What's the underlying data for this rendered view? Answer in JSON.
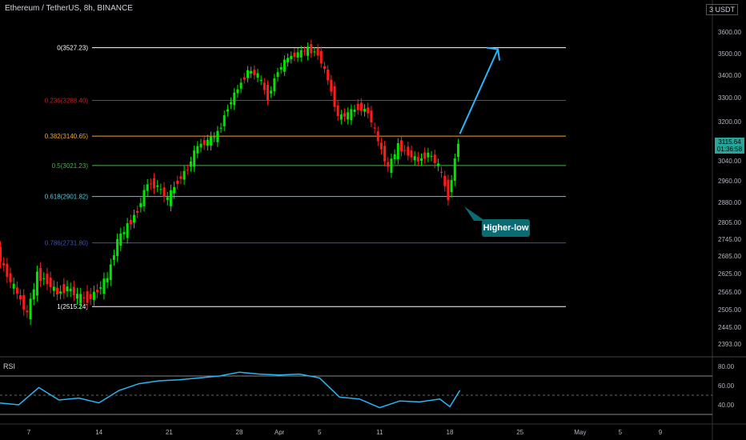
{
  "header": {
    "title": "Ethereum / TetherUS, 8h, BINANCE",
    "currency": "USDT",
    "currency_index": "3"
  },
  "price_badge": {
    "price": "3115.64",
    "countdown": "01:36:58"
  },
  "annotation": {
    "label": "Higher-low"
  },
  "rsi": {
    "label": "RSI",
    "ticks": [
      "80.00",
      "60.00",
      "40.00"
    ]
  },
  "colors": {
    "up": "#00e600",
    "down": "#ff1a1a",
    "fib0": "#ffffff",
    "fib236": "#cc1f1f",
    "fib382": "#f5a623",
    "fib5": "#4caf50",
    "fib618": "#4dd0e1",
    "fib786": "#3f51b5",
    "fib1": "#ffffff",
    "rsi": "#29b6f6",
    "arrow": "#29b6f6",
    "badge": "#26a69a"
  },
  "chart_data": {
    "type": "candlestick",
    "title": "Ethereum / TetherUS, 8h, BINANCE",
    "y_ticks": [
      "3600.00",
      "3500.00",
      "3400.00",
      "3300.00",
      "3200.00",
      "3040.00",
      "2960.00",
      "2880.00",
      "2805.00",
      "2745.00",
      "2685.00",
      "2625.00",
      "2565.00",
      "2505.00",
      "2445.00",
      "2393.00"
    ],
    "x_ticks": [
      "7",
      "14",
      "21",
      "28",
      "Apr",
      "5",
      "11",
      "18",
      "25",
      "May",
      "5",
      "9"
    ],
    "fib_levels": [
      {
        "label": "0(3527.23)",
        "value": 3527.23,
        "color_key": "fib0"
      },
      {
        "label": "0.236(3288.40)",
        "value": 3288.4,
        "color_key": "fib236"
      },
      {
        "label": "0.382(3140.65)",
        "value": 3140.65,
        "color_key": "fib382"
      },
      {
        "label": "0.5(3021.23)",
        "value": 3021.23,
        "color_key": "fib5"
      },
      {
        "label": "0.618(2901.82)",
        "value": 2901.82,
        "color_key": "fib618"
      },
      {
        "label": "0.786(2731.80)",
        "value": 2731.8,
        "color_key": "fib786"
      },
      {
        "label": "1(2515.24)",
        "value": 2515.24,
        "color_key": "fib1"
      }
    ],
    "close_path": [
      [
        "Mar 4",
        2700
      ],
      [
        "Mar 5",
        2620
      ],
      [
        "Mar 6",
        2560
      ],
      [
        "Mar 7",
        2490
      ],
      [
        "Mar 8",
        2620
      ],
      [
        "Mar 9",
        2600
      ],
      [
        "Mar 10",
        2560
      ],
      [
        "Mar 11",
        2580
      ],
      [
        "Mar 12",
        2550
      ],
      [
        "Mar 13",
        2540
      ],
      [
        "Mar 14",
        2570
      ],
      [
        "Mar 15",
        2610
      ],
      [
        "Mar 16",
        2740
      ],
      [
        "Mar 17",
        2790
      ],
      [
        "Mar 18",
        2850
      ],
      [
        "Mar 19",
        2950
      ],
      [
        "Mar 20",
        2940
      ],
      [
        "Mar 21",
        2890
      ],
      [
        "Mar 22",
        2960
      ],
      [
        "Mar 23",
        3010
      ],
      [
        "Mar 24",
        3100
      ],
      [
        "Mar 25",
        3120
      ],
      [
        "Mar 26",
        3150
      ],
      [
        "Mar 27",
        3260
      ],
      [
        "Mar 28",
        3340
      ],
      [
        "Mar 29",
        3420
      ],
      [
        "Mar 30",
        3400
      ],
      [
        "Mar 31",
        3300
      ],
      [
        "Apr 1",
        3420
      ],
      [
        "Apr 2",
        3480
      ],
      [
        "Apr 3",
        3500
      ],
      [
        "Apr 4",
        3520
      ],
      [
        "Apr 5",
        3500
      ],
      [
        "Apr 6",
        3380
      ],
      [
        "Apr 7",
        3220
      ],
      [
        "Apr 8",
        3230
      ],
      [
        "Apr 9",
        3260
      ],
      [
        "Apr 10",
        3240
      ],
      [
        "Apr 11",
        3120
      ],
      [
        "Apr 12",
        3010
      ],
      [
        "Apr 13",
        3100
      ],
      [
        "Apr 14",
        3070
      ],
      [
        "Apr 15",
        3040
      ],
      [
        "Apr 16",
        3070
      ],
      [
        "Apr 17",
        3020
      ],
      [
        "Apr 18",
        2900
      ],
      [
        "Apr 19",
        3115.64
      ]
    ],
    "rsi_path": [
      [
        "Mar 4",
        42
      ],
      [
        "Mar 6",
        40
      ],
      [
        "Mar 8",
        58
      ],
      [
        "Mar 10",
        45
      ],
      [
        "Mar 12",
        47
      ],
      [
        "Mar 14",
        42
      ],
      [
        "Mar 16",
        55
      ],
      [
        "Mar 18",
        62
      ],
      [
        "Mar 20",
        65
      ],
      [
        "Mar 22",
        66
      ],
      [
        "Mar 24",
        68
      ],
      [
        "Mar 26",
        70
      ],
      [
        "Mar 28",
        74
      ],
      [
        "Mar 30",
        72
      ],
      [
        "Apr 1",
        71
      ],
      [
        "Apr 3",
        72
      ],
      [
        "Apr 5",
        68
      ],
      [
        "Apr 7",
        48
      ],
      [
        "Apr 9",
        46
      ],
      [
        "Apr 11",
        37
      ],
      [
        "Apr 13",
        44
      ],
      [
        "Apr 15",
        43
      ],
      [
        "Apr 17",
        46
      ],
      [
        "Apr 18",
        38
      ],
      [
        "Apr 19",
        55
      ]
    ],
    "rsi_levels": [
      70,
      50,
      30
    ],
    "projection": {
      "from": [
        "Apr 19",
        3150
      ],
      "to": [
        "Apr 22",
        3520
      ]
    }
  }
}
